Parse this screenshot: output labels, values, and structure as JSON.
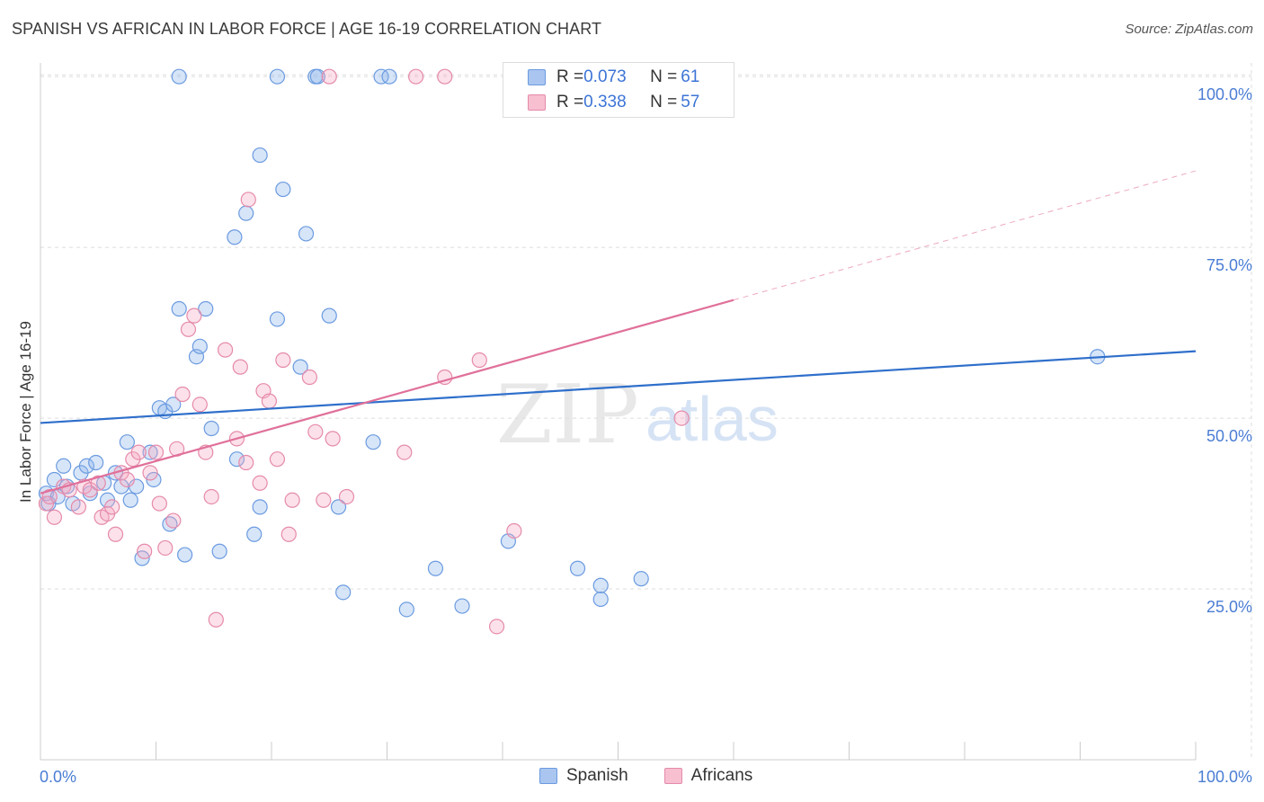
{
  "title": "SPANISH VS AFRICAN IN LABOR FORCE | AGE 16-19 CORRELATION CHART",
  "source": "Source: ZipAtlas.com",
  "watermark": {
    "zip": "ZIP",
    "atlas": "atlas"
  },
  "legend_top": [
    {
      "r_label": "R = ",
      "r_value": "0.073",
      "n_label": "N = ",
      "n_value": "61",
      "color": "#a9c5f0",
      "border": "#6b9be0"
    },
    {
      "r_label": "R = ",
      "r_value": "0.338",
      "n_label": "N = ",
      "n_value": "57",
      "color": "#f7bfd0",
      "border": "#e58aaa"
    }
  ],
  "legend_bottom": [
    {
      "label": "Spanish",
      "color": "#a9c5f0",
      "border": "#6b9be0"
    },
    {
      "label": "Africans",
      "color": "#f7bfd0",
      "border": "#e58aaa"
    }
  ],
  "colors": {
    "spanish_fill": "rgba(140,180,235,0.35)",
    "spanish_stroke": "#6b9be0",
    "spanish_line": "#2f6fcb",
    "african_fill": "rgba(245,170,195,0.35)",
    "african_stroke": "#e58aaa",
    "african_line": "#e0709a",
    "grid": "#dddddd",
    "axis": "#cccccc"
  },
  "chart_data": {
    "type": "scatter",
    "title": "SPANISH VS AFRICAN IN LABOR FORCE | AGE 16-19 CORRELATION CHART",
    "xlabel": "",
    "ylabel": "In Labor Force | Age 16-19",
    "xlim": [
      0,
      100
    ],
    "ylim": [
      0,
      102
    ],
    "x_tick_labels": [
      "0.0%",
      "100.0%"
    ],
    "y_ticks": [
      25,
      50,
      75,
      100
    ],
    "y_tick_labels": [
      "25.0%",
      "50.0%",
      "75.0%",
      "100.0%"
    ],
    "series": [
      {
        "name": "Spanish",
        "R": 0.073,
        "N": 61,
        "trend": {
          "x": [
            0,
            100
          ],
          "y": [
            49.3,
            59.8
          ]
        },
        "points": [
          [
            0.5,
            39
          ],
          [
            0.7,
            37.5
          ],
          [
            1.2,
            41
          ],
          [
            1.5,
            38.5
          ],
          [
            2,
            43
          ],
          [
            2.3,
            40
          ],
          [
            2.8,
            37.5
          ],
          [
            3.5,
            42
          ],
          [
            4,
            43
          ],
          [
            4.3,
            39
          ],
          [
            4.8,
            43.5
          ],
          [
            5.5,
            40.5
          ],
          [
            5.8,
            38
          ],
          [
            6.5,
            42
          ],
          [
            7,
            40
          ],
          [
            7.5,
            46.5
          ],
          [
            7.8,
            38
          ],
          [
            8.3,
            40
          ],
          [
            8.8,
            29.5
          ],
          [
            9.5,
            45
          ],
          [
            9.8,
            41
          ],
          [
            10.3,
            51.5
          ],
          [
            10.8,
            51
          ],
          [
            11.2,
            34.5
          ],
          [
            11.5,
            52
          ],
          [
            12,
            66
          ],
          [
            12.5,
            30
          ],
          [
            13.5,
            59
          ],
          [
            13.8,
            60.5
          ],
          [
            14.3,
            66
          ],
          [
            14.8,
            48.5
          ],
          [
            15.5,
            30.5
          ],
          [
            16.8,
            76.5
          ],
          [
            17,
            44
          ],
          [
            17.8,
            80
          ],
          [
            18.5,
            33
          ],
          [
            19,
            37
          ],
          [
            19,
            88.5
          ],
          [
            20.5,
            64.5
          ],
          [
            21,
            83.5
          ],
          [
            22.5,
            57.5
          ],
          [
            23,
            77
          ],
          [
            25,
            65
          ],
          [
            25.8,
            37
          ],
          [
            26.2,
            24.5
          ],
          [
            28.8,
            46.5
          ],
          [
            31.7,
            22
          ],
          [
            34.2,
            28
          ],
          [
            36.5,
            22.5
          ],
          [
            40.5,
            32
          ],
          [
            46.5,
            28
          ],
          [
            48.5,
            23.5
          ],
          [
            48.5,
            25.5
          ],
          [
            52,
            26.5
          ],
          [
            91.5,
            59
          ],
          [
            12,
            100
          ],
          [
            20.5,
            100
          ],
          [
            23.8,
            100
          ],
          [
            24,
            100
          ],
          [
            29.5,
            100
          ],
          [
            30.2,
            100
          ]
        ]
      },
      {
        "name": "Africans",
        "R": 0.338,
        "N": 57,
        "trend": {
          "x": [
            0,
            60
          ],
          "y": [
            39,
            67.3
          ]
        },
        "trend_dashed": {
          "x": [
            60,
            100
          ],
          "y": [
            67.3,
            86.2
          ]
        },
        "points": [
          [
            0.5,
            37.5
          ],
          [
            0.8,
            38.5
          ],
          [
            1.2,
            35.5
          ],
          [
            2,
            40
          ],
          [
            2.5,
            39.5
          ],
          [
            3.3,
            37
          ],
          [
            3.8,
            40
          ],
          [
            4.3,
            39.5
          ],
          [
            5,
            40.5
          ],
          [
            5.3,
            35.5
          ],
          [
            5.8,
            36
          ],
          [
            6.2,
            37
          ],
          [
            6.5,
            33
          ],
          [
            7,
            42
          ],
          [
            7.5,
            41
          ],
          [
            8,
            44
          ],
          [
            8.5,
            45
          ],
          [
            9,
            30.5
          ],
          [
            9.5,
            42
          ],
          [
            10,
            45
          ],
          [
            10.3,
            37.5
          ],
          [
            10.8,
            31
          ],
          [
            11.5,
            35
          ],
          [
            11.8,
            45.5
          ],
          [
            12.3,
            53.5
          ],
          [
            12.8,
            63
          ],
          [
            13.3,
            65
          ],
          [
            13.8,
            52
          ],
          [
            14.3,
            45
          ],
          [
            14.8,
            38.5
          ],
          [
            15.2,
            20.5
          ],
          [
            16,
            60
          ],
          [
            17,
            47
          ],
          [
            17.3,
            57.5
          ],
          [
            17.8,
            43.5
          ],
          [
            18,
            82
          ],
          [
            19,
            40.5
          ],
          [
            19.3,
            54
          ],
          [
            19.8,
            52.5
          ],
          [
            20.5,
            44
          ],
          [
            21,
            58.5
          ],
          [
            21.5,
            33
          ],
          [
            21.8,
            38
          ],
          [
            23.3,
            56
          ],
          [
            23.8,
            48
          ],
          [
            24.5,
            38
          ],
          [
            25.3,
            47
          ],
          [
            26.5,
            38.5
          ],
          [
            35,
            56
          ],
          [
            38,
            58.5
          ],
          [
            39.5,
            19.5
          ],
          [
            41,
            33.5
          ],
          [
            55.5,
            50
          ],
          [
            31.5,
            45
          ],
          [
            25,
            100
          ],
          [
            32.5,
            100
          ],
          [
            35,
            100
          ]
        ]
      }
    ]
  }
}
